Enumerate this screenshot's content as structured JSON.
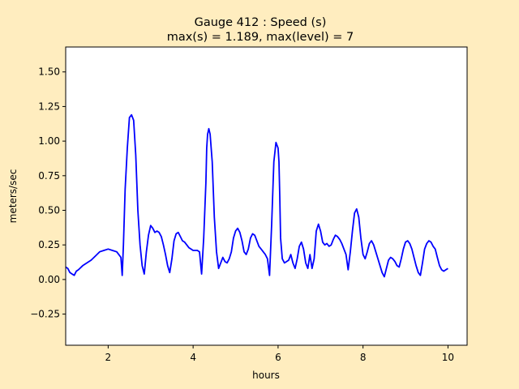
{
  "chart_data": {
    "type": "line",
    "title_line1": "Gauge 412 : Speed (s)",
    "title_line2": "max(s) =   1.189,    max(level) = 7",
    "xlabel": "hours",
    "ylabel": "meters/sec",
    "xlim": [
      1.0,
      10.45
    ],
    "ylim": [
      -0.475,
      1.68
    ],
    "xticks": [
      2,
      4,
      6,
      8,
      10
    ],
    "xtick_labels": [
      "2",
      "4",
      "6",
      "8",
      "10"
    ],
    "yticks": [
      -0.25,
      0.0,
      0.25,
      0.5,
      0.75,
      1.0,
      1.25,
      1.5
    ],
    "ytick_labels": [
      "−0.25",
      "0.00",
      "0.25",
      "0.50",
      "0.75",
      "1.00",
      "1.25",
      "1.50"
    ],
    "grid": false,
    "background_color": "#ffedbf",
    "axes_color": "#ffffff",
    "line_color": "#0000ff",
    "series": [
      {
        "x": [
          1.0,
          1.05,
          1.1,
          1.15,
          1.2,
          1.25,
          1.3,
          1.4,
          1.5,
          1.6,
          1.7,
          1.8,
          1.9,
          2.0,
          2.1,
          2.2,
          2.25,
          2.3,
          2.33,
          2.36,
          2.4,
          2.45,
          2.5,
          2.55,
          2.6,
          2.65,
          2.7,
          2.75,
          2.8,
          2.85,
          2.9,
          2.95,
          3.0,
          3.05,
          3.1,
          3.15,
          3.2,
          3.25,
          3.3,
          3.35,
          3.4,
          3.45,
          3.5,
          3.55,
          3.6,
          3.65,
          3.7,
          3.75,
          3.8,
          3.85,
          3.9,
          3.95,
          4.0,
          4.05,
          4.1,
          4.15,
          4.2,
          4.25,
          4.3,
          4.32,
          4.34,
          4.37,
          4.4,
          4.45,
          4.5,
          4.55,
          4.6,
          4.65,
          4.7,
          4.75,
          4.8,
          4.85,
          4.9,
          4.95,
          5.0,
          5.05,
          5.1,
          5.15,
          5.2,
          5.25,
          5.3,
          5.35,
          5.4,
          5.45,
          5.5,
          5.55,
          5.6,
          5.65,
          5.7,
          5.75,
          5.8,
          5.85,
          5.9,
          5.95,
          6.0,
          6.02,
          6.04,
          6.06,
          6.1,
          6.15,
          6.2,
          6.25,
          6.3,
          6.35,
          6.4,
          6.45,
          6.5,
          6.55,
          6.6,
          6.65,
          6.7,
          6.75,
          6.8,
          6.85,
          6.9,
          6.95,
          7.0,
          7.05,
          7.1,
          7.15,
          7.2,
          7.25,
          7.3,
          7.35,
          7.4,
          7.45,
          7.5,
          7.55,
          7.6,
          7.65,
          7.7,
          7.75,
          7.8,
          7.85,
          7.9,
          7.95,
          8.0,
          8.05,
          8.1,
          8.15,
          8.2,
          8.25,
          8.3,
          8.35,
          8.4,
          8.45,
          8.5,
          8.55,
          8.6,
          8.65,
          8.7,
          8.75,
          8.8,
          8.85,
          8.9,
          8.95,
          9.0,
          9.05,
          9.1,
          9.15,
          9.2,
          9.25,
          9.3,
          9.35,
          9.4,
          9.45,
          9.5,
          9.55,
          9.6,
          9.65,
          9.7,
          9.75,
          9.8,
          9.85,
          9.9,
          9.95,
          10.0
        ],
        "y": [
          0.09,
          0.08,
          0.05,
          0.04,
          0.03,
          0.06,
          0.07,
          0.1,
          0.12,
          0.14,
          0.17,
          0.2,
          0.21,
          0.22,
          0.21,
          0.2,
          0.18,
          0.16,
          0.03,
          0.25,
          0.65,
          0.95,
          1.17,
          1.19,
          1.15,
          0.9,
          0.5,
          0.25,
          0.1,
          0.04,
          0.2,
          0.32,
          0.39,
          0.37,
          0.34,
          0.35,
          0.34,
          0.31,
          0.25,
          0.18,
          0.1,
          0.05,
          0.15,
          0.28,
          0.33,
          0.34,
          0.31,
          0.28,
          0.27,
          0.25,
          0.23,
          0.22,
          0.21,
          0.21,
          0.21,
          0.2,
          0.04,
          0.3,
          0.7,
          0.95,
          1.05,
          1.09,
          1.05,
          0.85,
          0.45,
          0.2,
          0.08,
          0.12,
          0.16,
          0.13,
          0.12,
          0.15,
          0.2,
          0.3,
          0.35,
          0.37,
          0.34,
          0.28,
          0.2,
          0.18,
          0.22,
          0.3,
          0.33,
          0.32,
          0.28,
          0.24,
          0.22,
          0.2,
          0.18,
          0.15,
          0.03,
          0.4,
          0.85,
          0.99,
          0.95,
          0.85,
          0.6,
          0.3,
          0.15,
          0.12,
          0.13,
          0.14,
          0.18,
          0.12,
          0.08,
          0.15,
          0.24,
          0.27,
          0.22,
          0.12,
          0.08,
          0.18,
          0.08,
          0.15,
          0.35,
          0.4,
          0.35,
          0.27,
          0.25,
          0.26,
          0.24,
          0.25,
          0.29,
          0.32,
          0.31,
          0.29,
          0.26,
          0.22,
          0.18,
          0.07,
          0.2,
          0.35,
          0.48,
          0.51,
          0.45,
          0.3,
          0.18,
          0.15,
          0.2,
          0.26,
          0.28,
          0.25,
          0.2,
          0.15,
          0.1,
          0.05,
          0.02,
          0.08,
          0.14,
          0.16,
          0.15,
          0.13,
          0.1,
          0.09,
          0.15,
          0.22,
          0.27,
          0.28,
          0.26,
          0.22,
          0.16,
          0.1,
          0.05,
          0.03,
          0.12,
          0.22,
          0.26,
          0.28,
          0.27,
          0.24,
          0.22,
          0.16,
          0.1,
          0.07,
          0.06,
          0.07,
          0.08
        ]
      }
    ]
  }
}
